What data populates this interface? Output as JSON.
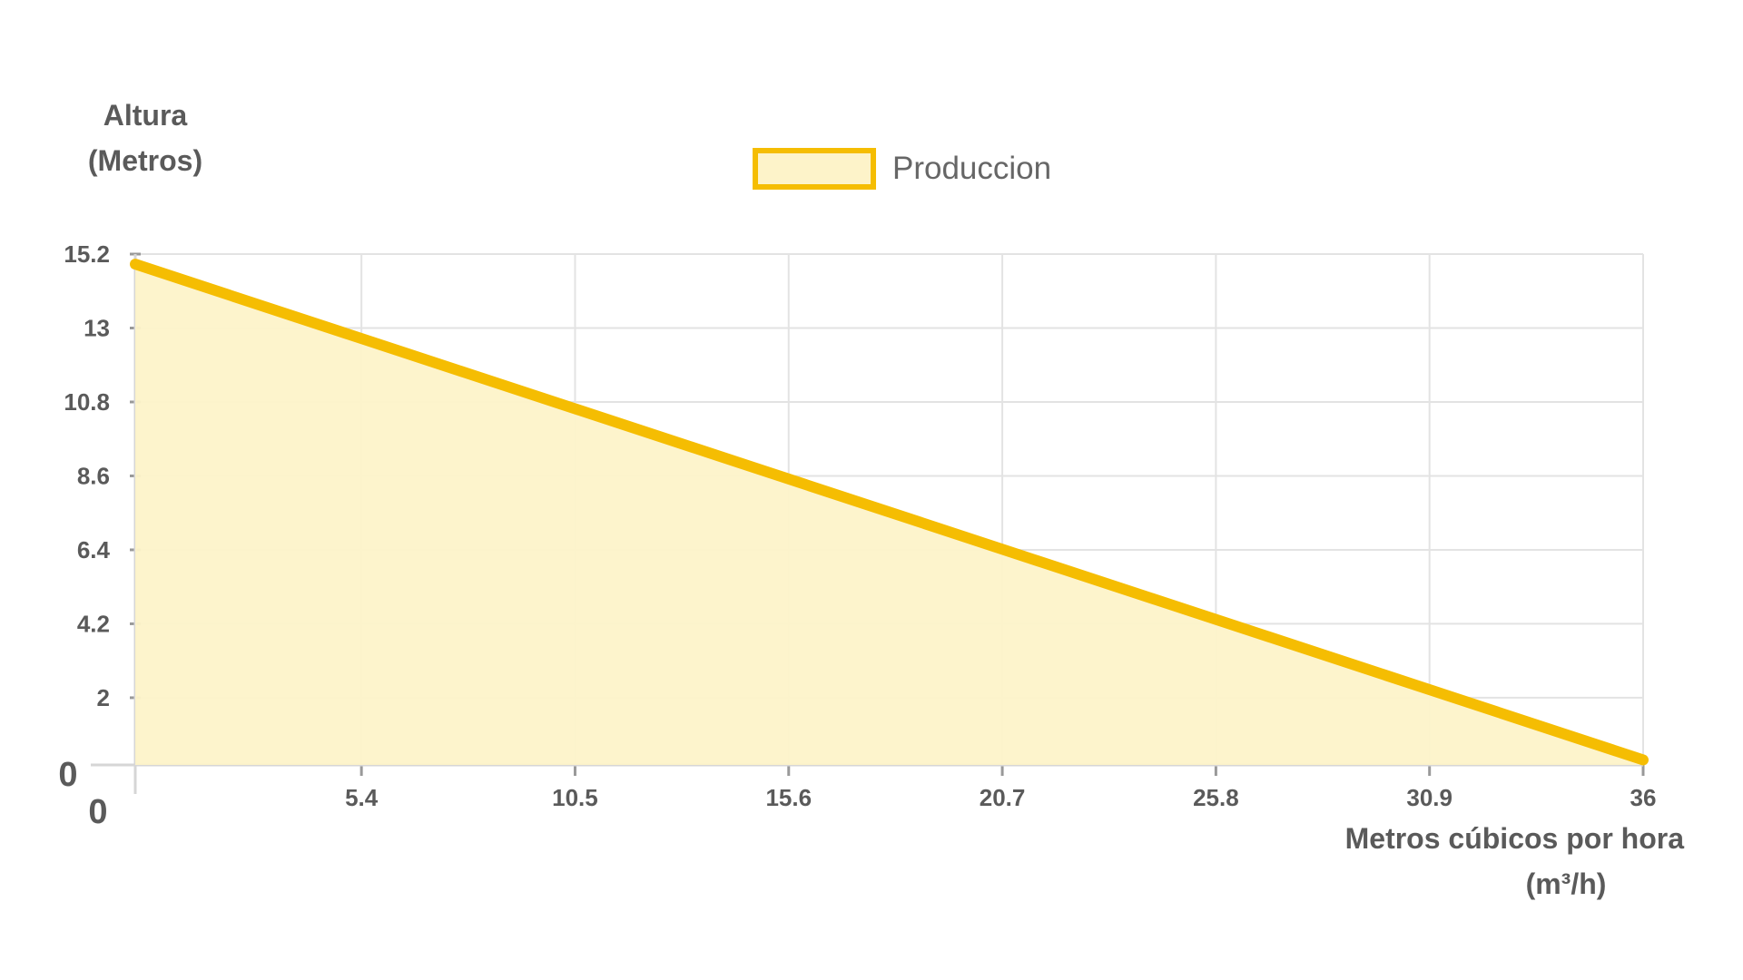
{
  "chart_data": {
    "type": "area",
    "xlabel": "Metros cúbicos por hora",
    "xlabel_unit": "(m³/h)",
    "ylabel": "Altura",
    "ylabel_unit": "(Metros)",
    "legend": {
      "entries": [
        "Produccion"
      ],
      "placement": "top-center"
    },
    "x_ticks": [
      "5.4",
      "10.5",
      "15.6",
      "20.7",
      "25.8",
      "30.9",
      "36"
    ],
    "y_ticks": [
      "15.2",
      "13",
      "10.8",
      "8.6",
      "6.4",
      "4.2",
      "2"
    ],
    "origin_labels": [
      "0",
      "0"
    ],
    "xlim": [
      0,
      36
    ],
    "ylim": [
      0,
      15.2
    ],
    "grid": true,
    "series": [
      {
        "name": "Produccion",
        "x": [
          0,
          36
        ],
        "y": [
          14.9,
          0.15
        ]
      }
    ],
    "colors": {
      "line": "#f5bd02",
      "fill": "#fdf3c9",
      "grid": "#e3e3e3",
      "text": "#5a5a5a"
    }
  }
}
